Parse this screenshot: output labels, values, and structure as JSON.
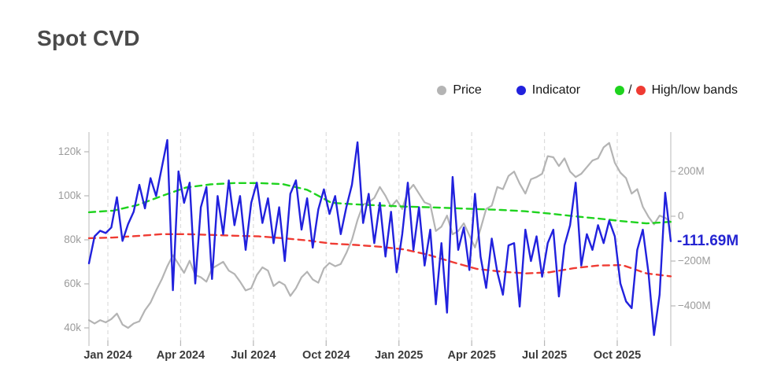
{
  "title": "Spot CVD",
  "chart_data": {
    "type": "line",
    "title": "Spot CVD",
    "grid": "vertical-dashed",
    "legend_position": "top-right",
    "x_unit": "weekly samples, Dec 2023 - Dec 2025",
    "x_axis": {
      "tick_labels": [
        "Jan 2024",
        "Apr 2024",
        "Jul 2024",
        "Oct 2024",
        "Jan 2025",
        "Apr 2025",
        "Jul 2025",
        "Oct 2025"
      ]
    },
    "left_axis": {
      "title": "Price",
      "unit": "USD thousands",
      "tick_labels": [
        "120k",
        "100k",
        "80k",
        "60k",
        "40k"
      ],
      "tick_values": [
        120,
        100,
        80,
        60,
        40
      ],
      "range": [
        38,
        128
      ]
    },
    "right_axis": {
      "title": "Indicator",
      "unit": "USD millions",
      "tick_labels": [
        "200M",
        "0",
        "−200M",
        "−400M"
      ],
      "tick_values": [
        200,
        0,
        -200,
        -400
      ],
      "range": [
        -560,
        380
      ]
    },
    "annotation": {
      "text": "-111.69M",
      "color": "#2525d2",
      "series": "Indicator"
    },
    "legend": [
      {
        "label": "Price",
        "color": "#b4b4b4"
      },
      {
        "label": "Indicator",
        "color": "#2121dd"
      },
      {
        "label": "High/low bands",
        "separator": "/",
        "colors": [
          "#1ed31e",
          "#ef3b33"
        ]
      }
    ],
    "series": [
      {
        "id": "price",
        "name": "Price",
        "axis": "left",
        "color": "#b4b4b4",
        "style": "solid",
        "width": 2.2,
        "unit": "k",
        "values": [
          43.5,
          42,
          43.5,
          42.5,
          44,
          46.5,
          41.5,
          40,
          42,
          43,
          48,
          51.5,
          57,
          62,
          68,
          73,
          69,
          65,
          70.5,
          64,
          63,
          61,
          67,
          68.5,
          70,
          66,
          64.5,
          61,
          57,
          58,
          64,
          67.5,
          66,
          59,
          61,
          59.5,
          54.5,
          58,
          63,
          65.5,
          62,
          60.5,
          67,
          69.5,
          68,
          69,
          74,
          80,
          89,
          96,
          97,
          99,
          104,
          100,
          95,
          98,
          94,
          102,
          105,
          101,
          97,
          96,
          84,
          86,
          91,
          82.5,
          84,
          87.5,
          82,
          76.5,
          85,
          94,
          95.5,
          104,
          103,
          109,
          111,
          105.5,
          101,
          107.5,
          108.5,
          110,
          118,
          117.5,
          113.5,
          117,
          111,
          108.5,
          110,
          113,
          116,
          117,
          122,
          124,
          115,
          110.5,
          108,
          101,
          103,
          95,
          90.5,
          87,
          91,
          90,
          88
        ]
      },
      {
        "id": "low_band",
        "name": "Low band",
        "axis": "right",
        "color": "#ef3b33",
        "style": "dashed",
        "width": 2.4,
        "unit": "M",
        "values": [
          -98,
          -95,
          -88,
          -80,
          -80,
          -83,
          -87,
          -90,
          -98,
          -108,
          -122,
          -128,
          -136,
          -148,
          -172,
          -205,
          -235,
          -247,
          -255,
          -250,
          -232,
          -220,
          -218,
          -255,
          -268
        ]
      },
      {
        "id": "high_band",
        "name": "High band",
        "axis": "right",
        "color": "#1ed31e",
        "style": "dashed",
        "width": 2.4,
        "unit": "M",
        "values": [
          18,
          25,
          50,
          90,
          128,
          142,
          148,
          148,
          143,
          118,
          60,
          53,
          48,
          43,
          40,
          36,
          32,
          28,
          22,
          12,
          0,
          -10,
          -22,
          -32,
          -25
        ]
      },
      {
        "id": "indicator",
        "name": "Indicator",
        "axis": "right",
        "color": "#2121dd",
        "style": "solid",
        "width": 2.4,
        "unit": "M",
        "values": [
          -210,
          -90,
          -65,
          -75,
          -50,
          85,
          -110,
          -35,
          20,
          140,
          35,
          170,
          90,
          215,
          340,
          -330,
          200,
          60,
          150,
          -300,
          40,
          130,
          -280,
          90,
          -80,
          160,
          -40,
          90,
          -150,
          60,
          150,
          -30,
          80,
          -120,
          40,
          -200,
          100,
          160,
          -60,
          80,
          -140,
          30,
          120,
          10,
          90,
          -80,
          40,
          140,
          330,
          -30,
          100,
          -120,
          60,
          -180,
          20,
          -250,
          -80,
          150,
          -150,
          40,
          -220,
          -60,
          -393,
          -120,
          -430,
          175,
          -150,
          -50,
          -240,
          100,
          -180,
          -320,
          -100,
          -250,
          -350,
          -130,
          -120,
          -403,
          -60,
          -200,
          -90,
          -270,
          -120,
          -60,
          -358,
          -130,
          -40,
          150,
          -220,
          -80,
          -150,
          -40,
          -120,
          -20,
          -90,
          -300,
          -380,
          -410,
          -150,
          -60,
          -250,
          -530,
          -350,
          105,
          -111.69
        ]
      }
    ]
  }
}
